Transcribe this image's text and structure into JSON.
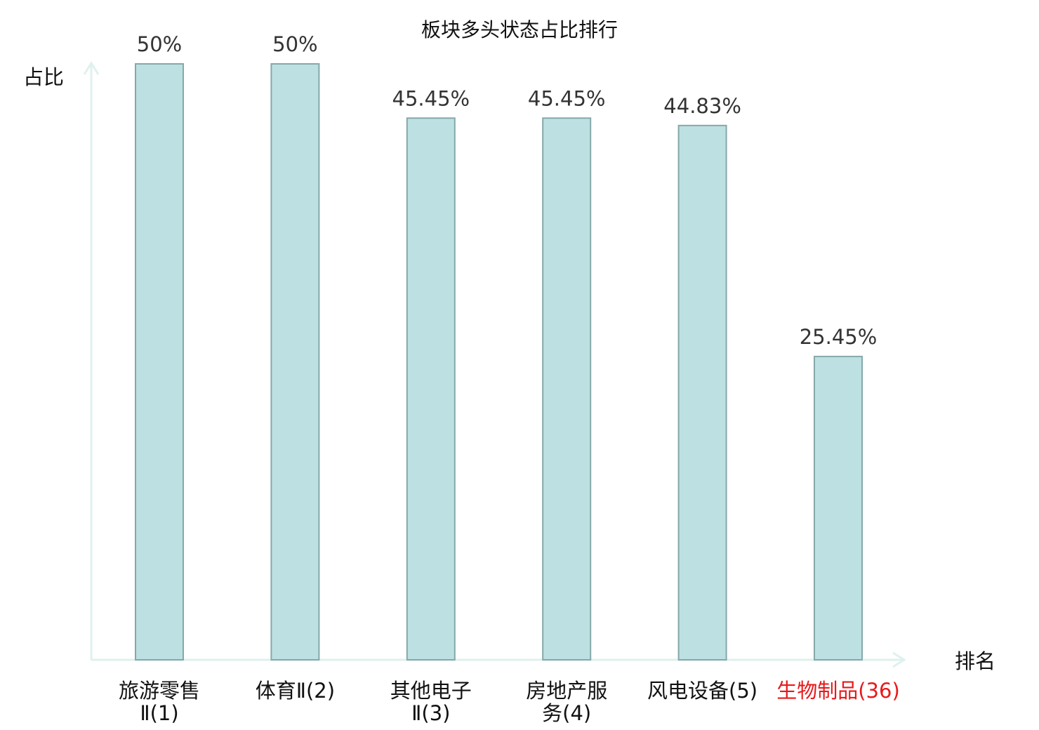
{
  "chart_data": {
    "type": "bar",
    "title": "板块多头状态占比排行",
    "ylabel": "占比",
    "xlabel": "排名",
    "ylim": [
      0,
      50
    ],
    "grid": false,
    "categories": [
      {
        "lines": [
          "旅游零售",
          "Ⅱ(1)"
        ],
        "highlight": false
      },
      {
        "lines": [
          "体育Ⅱ(2)"
        ],
        "highlight": false
      },
      {
        "lines": [
          "其他电子",
          "Ⅱ(3)"
        ],
        "highlight": false
      },
      {
        "lines": [
          "房地产服",
          "务(4)"
        ],
        "highlight": false
      },
      {
        "lines": [
          "风电设备(5)"
        ],
        "highlight": false
      },
      {
        "lines": [
          "生物制品(36)"
        ],
        "highlight": true
      }
    ],
    "values": [
      50,
      50,
      45.45,
      45.45,
      44.83,
      25.45
    ],
    "value_labels": [
      "50%",
      "50%",
      "45.45%",
      "45.45%",
      "44.83%",
      "25.45%"
    ]
  },
  "colors": {
    "bar_fill": "#bde0e2",
    "bar_stroke": "#86a8aa",
    "axis": "#dff1ee",
    "label": "#111111",
    "value_label": "#333333",
    "highlight": "#e8191b"
  }
}
